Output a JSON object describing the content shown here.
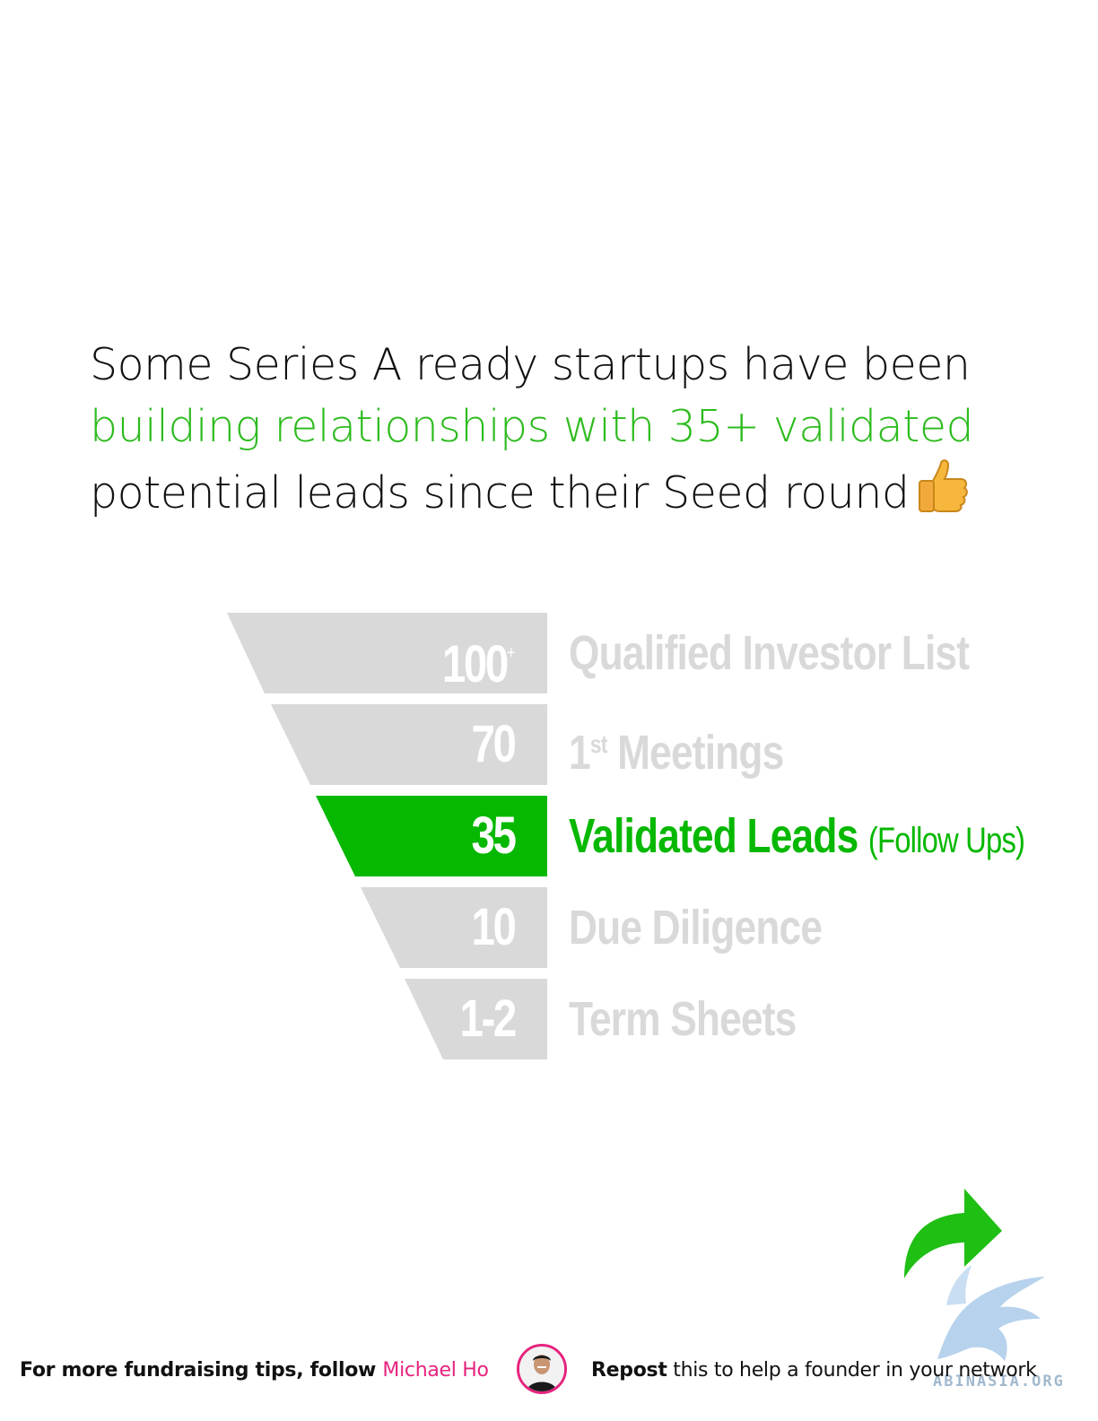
{
  "headline": {
    "line1": "Some Series A ready startups have been",
    "line2": "building relationships with 35+ validated",
    "line3": "potential leads since their Seed round",
    "emoji": "thumbs-up-icon"
  },
  "funnel": {
    "stages": [
      {
        "value": "100",
        "value_suffix": "+",
        "label": "Qualified Investor List",
        "label_sup": "",
        "label_rest": "",
        "sub": ""
      },
      {
        "value": "70",
        "value_suffix": "",
        "label": "1",
        "label_sup": "st",
        "label_rest": " Meetings",
        "sub": ""
      },
      {
        "value": "35",
        "value_suffix": "",
        "label": "Validated Leads",
        "label_sup": "",
        "label_rest": "",
        "sub": "(Follow Ups)"
      },
      {
        "value": "10",
        "value_suffix": "",
        "label": "Due Diligence",
        "label_sup": "",
        "label_rest": "",
        "sub": ""
      },
      {
        "value": "1-2",
        "value_suffix": "",
        "label": "Term Sheets",
        "label_sup": "",
        "label_rest": "",
        "sub": ""
      }
    ],
    "active_index": 2
  },
  "colors": {
    "accent_green": "#06b800",
    "headline_green": "#2dbb1e",
    "inactive_gray": "#d9d9d9",
    "brand_pink": "#e6237e"
  },
  "footer": {
    "left_prefix": "For more fundraising tips, follow ",
    "author_name": "Michael Ho",
    "right_bold": "Repost",
    "right_rest": " this to help a founder in your network",
    "avatar": "avatar-photo",
    "share_icon": "share-arrow-icon"
  },
  "watermark": {
    "text": "ABINASIA.ORG"
  }
}
